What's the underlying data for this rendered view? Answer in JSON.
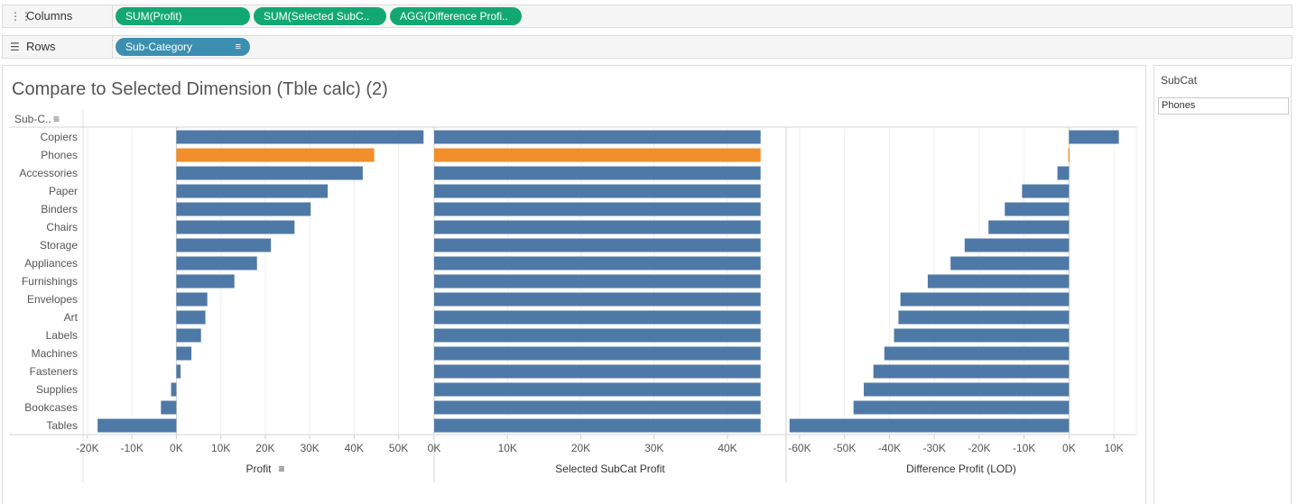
{
  "shelves": {
    "columns": {
      "label": "Columns",
      "icon": "columns-icon",
      "pills": [
        "SUM(Profit)",
        "SUM(Selected SubC..",
        "AGG(Difference Profi.."
      ]
    },
    "rows": {
      "label": "Rows",
      "icon": "rows-icon",
      "pills": [
        "Sub-Category"
      ]
    }
  },
  "filter": {
    "title": "SubCat",
    "value": "Phones"
  },
  "colors": {
    "bar": "#4e79a7",
    "highlight": "#f28e2b",
    "pill_green": "#13a872",
    "pill_blue": "#3c8fb0"
  },
  "chart_data": {
    "type": "bar",
    "orientation": "horizontal",
    "title": "Compare to Selected Dimension (Tble calc) (2)",
    "row_header": "Sub-C..",
    "highlighted": "Phones",
    "categories": [
      "Copiers",
      "Phones",
      "Accessories",
      "Paper",
      "Binders",
      "Chairs",
      "Storage",
      "Appliances",
      "Furnishings",
      "Envelopes",
      "Art",
      "Labels",
      "Machines",
      "Fasteners",
      "Supplies",
      "Bookcases",
      "Tables"
    ],
    "series": [
      {
        "name": "Profit",
        "xlabel": "Profit",
        "xlim": [
          -21000,
          58000
        ],
        "ticks": [
          -20000,
          -10000,
          0,
          10000,
          20000,
          30000,
          40000,
          50000
        ],
        "tick_labels": [
          "-20K",
          "-10K",
          "0K",
          "10K",
          "20K",
          "30K",
          "40K",
          "50K"
        ],
        "values": [
          55618,
          44516,
          41937,
          34054,
          30222,
          26590,
          21279,
          18138,
          13059,
          6964,
          6528,
          5546,
          3385,
          950,
          -1189,
          -3473,
          -17725
        ]
      },
      {
        "name": "Selected SubCat Profit",
        "xlabel": "Selected SubCat Profit",
        "xlim": [
          0,
          48000
        ],
        "ticks": [
          0,
          10000,
          20000,
          30000,
          40000
        ],
        "tick_labels": [
          "0K",
          "10K",
          "20K",
          "30K",
          "40K"
        ],
        "values": [
          44516,
          44516,
          44516,
          44516,
          44516,
          44516,
          44516,
          44516,
          44516,
          44516,
          44516,
          44516,
          44516,
          44516,
          44516,
          44516,
          44516
        ]
      },
      {
        "name": "Difference Profit (LOD)",
        "xlabel": "Difference Profit (LOD)",
        "xlim": [
          -63000,
          15000
        ],
        "ticks": [
          -60000,
          -50000,
          -40000,
          -30000,
          -20000,
          -10000,
          0,
          10000
        ],
        "tick_labels": [
          "-60K",
          "-50K",
          "-40K",
          "-30K",
          "-20K",
          "-10K",
          "0K",
          "10K"
        ],
        "values": [
          11102,
          0,
          -2579,
          -10462,
          -14294,
          -17926,
          -23237,
          -26378,
          -31457,
          -37552,
          -37988,
          -38970,
          -41131,
          -43566,
          -45705,
          -47989,
          -62241
        ]
      }
    ]
  }
}
